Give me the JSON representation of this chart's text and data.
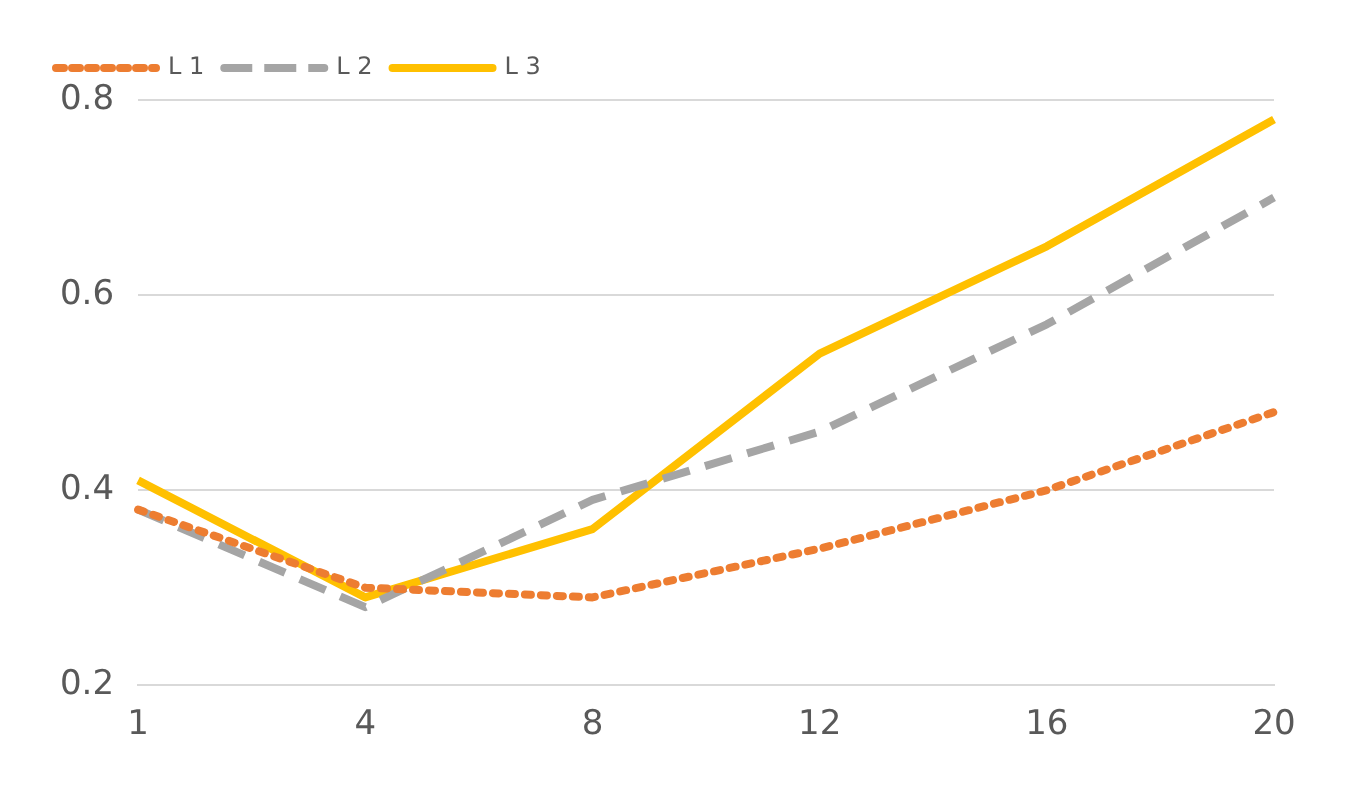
{
  "chart_data": {
    "type": "line",
    "categories": [
      "1",
      "4",
      "8",
      "12",
      "16",
      "20"
    ],
    "series": [
      {
        "name": "L 1",
        "color": "#ed7d31",
        "values": [
          0.38,
          0.3,
          0.29,
          0.34,
          0.4,
          0.48
        ],
        "line_style": "dotted"
      },
      {
        "name": "L 2",
        "color": "#a5a5a5",
        "values": [
          0.38,
          0.28,
          0.39,
          0.46,
          0.57,
          0.7
        ],
        "line_style": "dashed"
      },
      {
        "name": "L 3",
        "color": "#ffc000",
        "values": [
          0.41,
          0.29,
          0.36,
          0.54,
          0.65,
          0.78
        ],
        "line_style": "solid"
      }
    ],
    "ylim": [
      0.2,
      0.8
    ],
    "yticks": [
      0.2,
      0.4,
      0.6,
      0.8
    ],
    "grid": "y",
    "legend": "top left",
    "marker": "none"
  }
}
